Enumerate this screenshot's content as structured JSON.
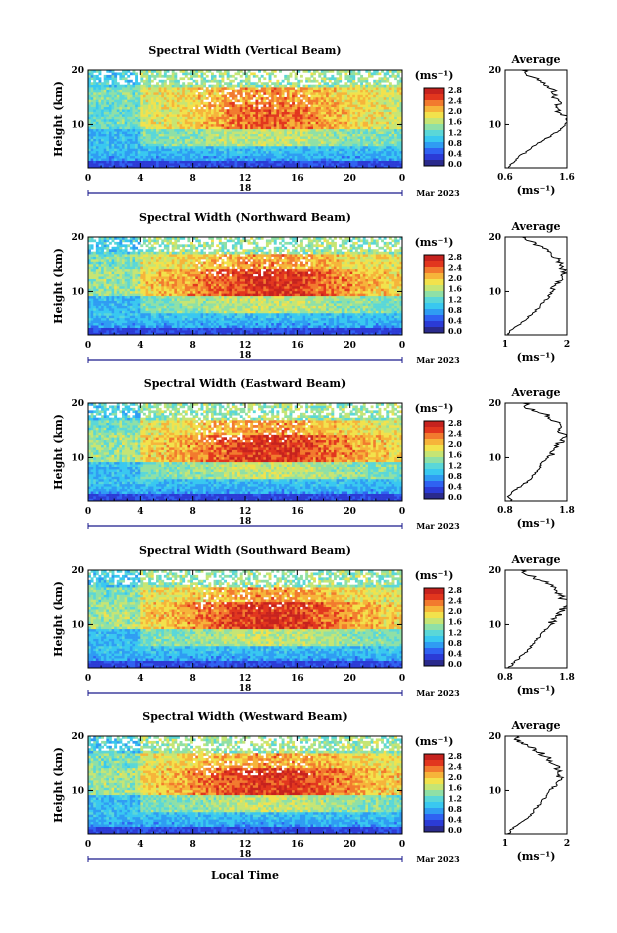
{
  "figure": {
    "bottom_xlabel": "Local Time",
    "date_label": "Mar 2023",
    "day_label": "18",
    "colorbar_unit": "(ms⁻¹)",
    "colorbar_ticks": [
      "2.8",
      "2.4",
      "2.0",
      "1.6",
      "1.2",
      "0.8",
      "0.4",
      "0.0"
    ],
    "avg_title": "Average",
    "avg_unit": "(ms⁻¹)",
    "ylabel": "Height (km)",
    "colors": {
      "ramp": [
        "#2a2a8c",
        "#2b3bd6",
        "#2f62f2",
        "#2f9cf3",
        "#39c8f0",
        "#5ad7d8",
        "#8fe0a6",
        "#c6e574",
        "#f2e24c",
        "#f6b43a",
        "#f27a2e",
        "#e2361e",
        "#c6221e"
      ]
    }
  },
  "chart_data": [
    {
      "type": "heatmap",
      "title": "Spectral Width (Vertical Beam)",
      "xlabel": "",
      "ylabel": "Height (km)",
      "xlim": [
        0,
        24
      ],
      "ylim": [
        2,
        20
      ],
      "xticks": [
        "0",
        "4",
        "8",
        "12",
        "16",
        "20",
        "0"
      ],
      "yticks": [
        "10",
        "20"
      ],
      "clim": [
        0.0,
        3.0
      ],
      "avg_profile": {
        "xlim": [
          0.6,
          1.6
        ],
        "xticks": [
          "0.6",
          "1.6"
        ],
        "heights": [
          2,
          3,
          4,
          5,
          6,
          7,
          8,
          9,
          10,
          11,
          12,
          13,
          14,
          15,
          16,
          17,
          18,
          19,
          20
        ],
        "values": [
          0.65,
          0.72,
          0.82,
          0.95,
          1.05,
          1.2,
          1.35,
          1.48,
          1.58,
          1.6,
          1.52,
          1.42,
          1.45,
          1.38,
          1.4,
          1.3,
          1.15,
          1.0,
          0.9
        ]
      }
    },
    {
      "type": "heatmap",
      "title": "Spectral Width (Northward Beam)",
      "xlabel": "",
      "ylabel": "Height (km)",
      "xlim": [
        0,
        24
      ],
      "ylim": [
        2,
        20
      ],
      "xticks": [
        "0",
        "4",
        "8",
        "12",
        "16",
        "20",
        "0"
      ],
      "yticks": [
        "10",
        "20"
      ],
      "clim": [
        0.0,
        3.0
      ],
      "avg_profile": {
        "xlim": [
          1.0,
          2.0
        ],
        "xticks": [
          "1",
          "2"
        ],
        "heights": [
          2,
          3,
          4,
          5,
          6,
          7,
          8,
          9,
          10,
          11,
          12,
          13,
          14,
          15,
          16,
          17,
          18,
          19,
          20
        ],
        "values": [
          1.05,
          1.1,
          1.25,
          1.35,
          1.45,
          1.55,
          1.62,
          1.7,
          1.76,
          1.82,
          1.88,
          1.92,
          1.95,
          1.9,
          1.85,
          1.75,
          1.6,
          1.45,
          1.3
        ]
      }
    },
    {
      "type": "heatmap",
      "title": "Spectral Width (Eastward Beam)",
      "xlabel": "",
      "ylabel": "Height (km)",
      "xlim": [
        0,
        24
      ],
      "ylim": [
        2,
        20
      ],
      "xticks": [
        "0",
        "4",
        "8",
        "12",
        "16",
        "20",
        "0"
      ],
      "yticks": [
        "10",
        "20"
      ],
      "clim": [
        0.0,
        3.0
      ],
      "avg_profile": {
        "xlim": [
          0.8,
          1.8
        ],
        "xticks": [
          "0.8",
          "1.8"
        ],
        "heights": [
          2,
          3,
          4,
          5,
          6,
          7,
          8,
          9,
          10,
          11,
          12,
          13,
          14,
          15,
          16,
          17,
          18,
          19,
          20
        ],
        "values": [
          0.9,
          0.85,
          0.95,
          1.1,
          1.2,
          1.28,
          1.35,
          1.4,
          1.48,
          1.58,
          1.65,
          1.7,
          1.75,
          1.68,
          1.72,
          1.55,
          1.45,
          1.2,
          1.1
        ]
      }
    },
    {
      "type": "heatmap",
      "title": "Spectral Width (Southward Beam)",
      "xlabel": "",
      "ylabel": "Height (km)",
      "xlim": [
        0,
        24
      ],
      "ylim": [
        2,
        20
      ],
      "xticks": [
        "0",
        "4",
        "8",
        "12",
        "16",
        "20",
        "0"
      ],
      "yticks": [
        "10",
        "20"
      ],
      "clim": [
        0.0,
        3.0
      ],
      "avg_profile": {
        "xlim": [
          0.8,
          1.8
        ],
        "xticks": [
          "0.8",
          "1.8"
        ],
        "heights": [
          2,
          3,
          4,
          5,
          6,
          7,
          8,
          9,
          10,
          11,
          12,
          13,
          14,
          15,
          16,
          17,
          18,
          19,
          20
        ],
        "values": [
          0.85,
          0.95,
          1.05,
          1.15,
          1.22,
          1.3,
          1.38,
          1.45,
          1.52,
          1.6,
          1.68,
          1.74,
          1.78,
          1.72,
          1.65,
          1.55,
          1.4,
          1.2,
          1.05
        ]
      }
    },
    {
      "type": "heatmap",
      "title": "Spectral Width (Westward Beam)",
      "xlabel": "Local Time",
      "ylabel": "Height (km)",
      "xlim": [
        0,
        24
      ],
      "ylim": [
        2,
        20
      ],
      "xticks": [
        "0",
        "4",
        "8",
        "12",
        "16",
        "20",
        "0"
      ],
      "yticks": [
        "10",
        "20"
      ],
      "clim": [
        0.0,
        3.0
      ],
      "avg_profile": {
        "xlim": [
          1.0,
          2.0
        ],
        "xticks": [
          "1",
          "2"
        ],
        "heights": [
          2,
          3,
          4,
          5,
          6,
          7,
          8,
          9,
          10,
          11,
          12,
          13,
          14,
          15,
          16,
          17,
          18,
          19,
          20
        ],
        "values": [
          1.05,
          1.12,
          1.25,
          1.38,
          1.45,
          1.52,
          1.6,
          1.66,
          1.72,
          1.8,
          1.86,
          1.9,
          1.85,
          1.78,
          1.7,
          1.55,
          1.4,
          1.25,
          1.15
        ]
      }
    }
  ]
}
